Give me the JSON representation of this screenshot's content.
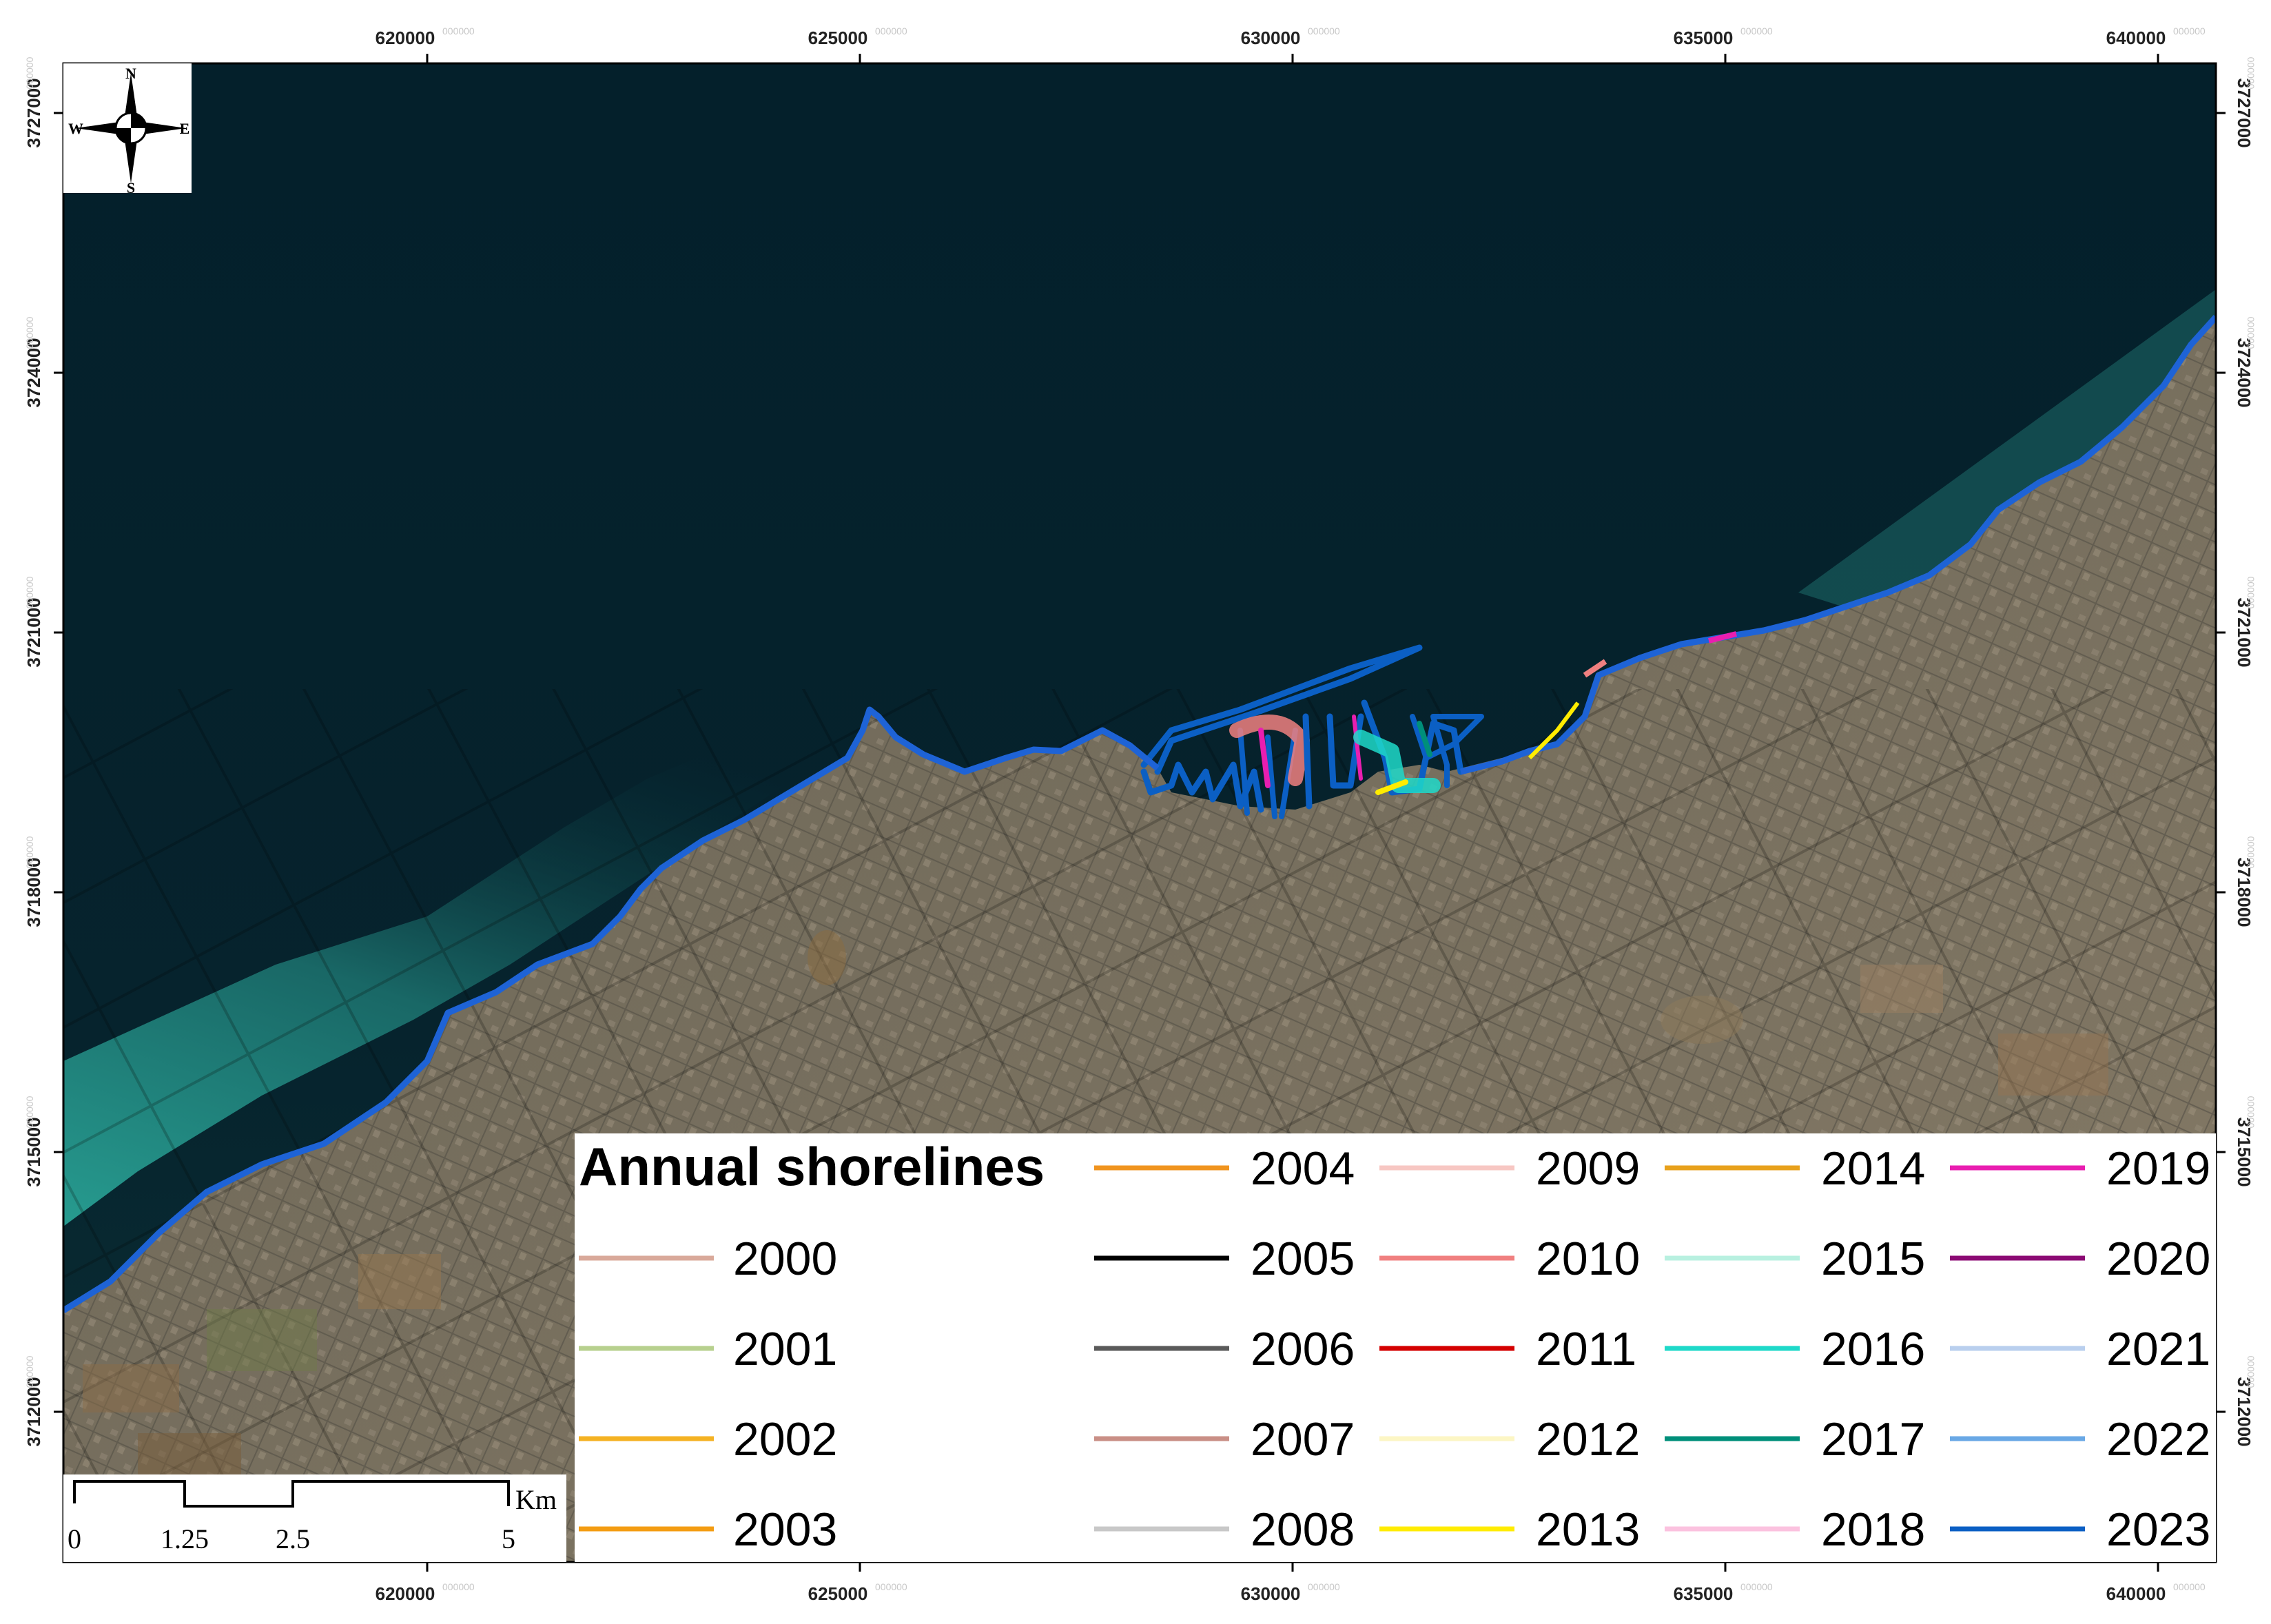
{
  "map": {
    "x_ticks": [
      "620000",
      "625000",
      "630000",
      "635000",
      "640000"
    ],
    "y_ticks": [
      "3727000",
      "3724000",
      "3721000",
      "3718000",
      "3715000",
      "3712000"
    ],
    "tick_suffix": "000000",
    "colors": {
      "sea": "#05202c",
      "coast_water": "#1f8f8a",
      "land": "#6e6a5a",
      "shoreline": "#1e63d6"
    }
  },
  "compass": {
    "north": "N",
    "south": "S",
    "east": "E",
    "west": "W"
  },
  "scale_bar": {
    "unit": "Km",
    "labels": [
      "0",
      "1.25",
      "2.5",
      "5"
    ]
  },
  "legend": {
    "title": "Annual shorelines",
    "entries": [
      {
        "year": "2000",
        "color": "#d9a99a"
      },
      {
        "year": "2001",
        "color": "#b7d08e"
      },
      {
        "year": "2002",
        "color": "#f4b223"
      },
      {
        "year": "2003",
        "color": "#f39c12"
      },
      {
        "year": "2004",
        "color": "#f0941f"
      },
      {
        "year": "2005",
        "color": "#000000"
      },
      {
        "year": "2006",
        "color": "#5a5a5a"
      },
      {
        "year": "2007",
        "color": "#c98f86"
      },
      {
        "year": "2008",
        "color": "#c8c8c8"
      },
      {
        "year": "2009",
        "color": "#f7c7c3"
      },
      {
        "year": "2010",
        "color": "#f08080"
      },
      {
        "year": "2011",
        "color": "#d40000"
      },
      {
        "year": "2012",
        "color": "#fcf6c4"
      },
      {
        "year": "2013",
        "color": "#ffec00"
      },
      {
        "year": "2014",
        "color": "#e8a11c"
      },
      {
        "year": "2015",
        "color": "#b8f0e0"
      },
      {
        "year": "2016",
        "color": "#1ed9c9"
      },
      {
        "year": "2017",
        "color": "#008f7a"
      },
      {
        "year": "2018",
        "color": "#fbc2df"
      },
      {
        "year": "2019",
        "color": "#e91eb0"
      },
      {
        "year": "2020",
        "color": "#8b0a73"
      },
      {
        "year": "2021",
        "color": "#b9cfee"
      },
      {
        "year": "2022",
        "color": "#69a8e5"
      },
      {
        "year": "2023",
        "color": "#0b5fc4"
      }
    ]
  }
}
